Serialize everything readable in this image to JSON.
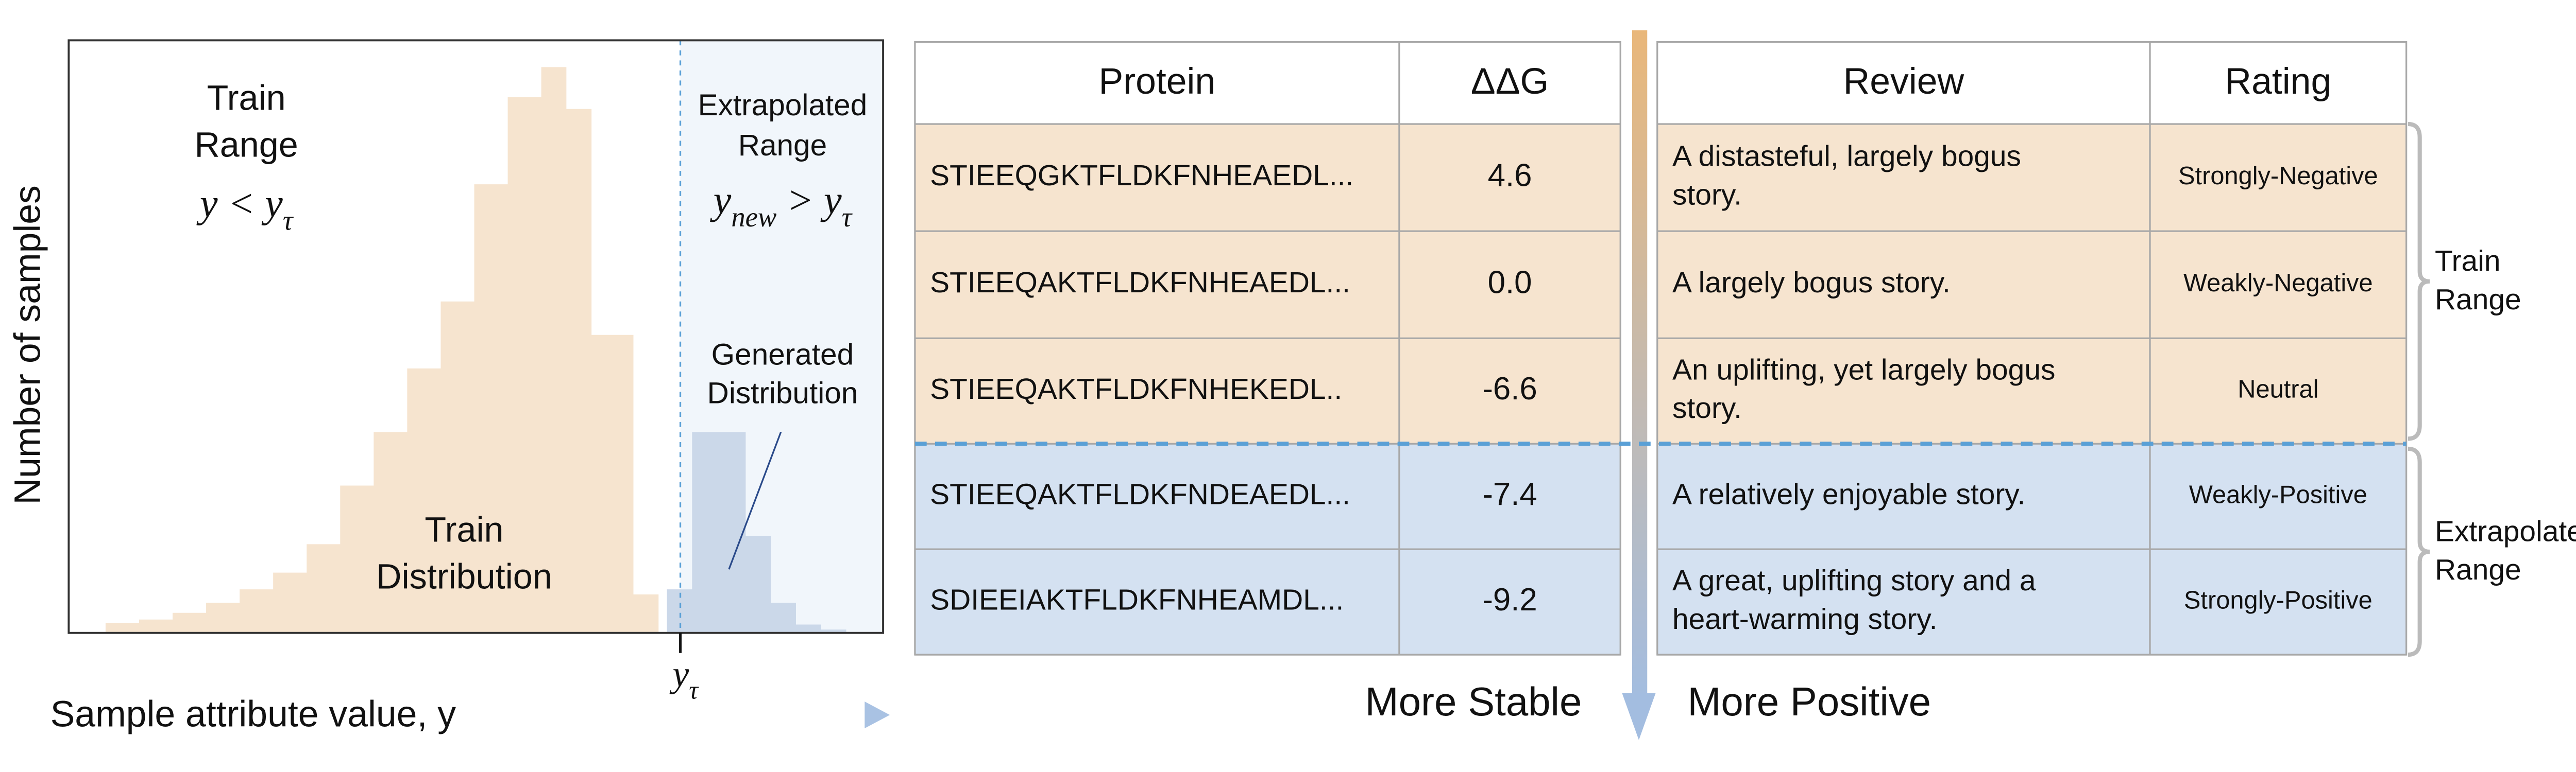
{
  "histogram": {
    "y_axis_label": "Number of samples",
    "x_axis_label": "Sample attribute value, y",
    "train_range": {
      "lines": [
        "Train",
        "Range"
      ],
      "math": [
        {
          "text": "y < y"
        },
        {
          "text": "τ",
          "sub": true
        }
      ]
    },
    "extrapolated_range": {
      "lines": [
        "Extrapolated",
        "Range"
      ],
      "math": [
        {
          "text": "y"
        },
        {
          "text": "new",
          "sub": true
        },
        {
          "text": " > y"
        },
        {
          "text": "τ",
          "sub": true
        }
      ]
    },
    "generated_label": [
      "Generated",
      "Distribution"
    ],
    "train_label": [
      "Train",
      "Distribution"
    ],
    "threshold_tick": [
      {
        "text": "y"
      },
      {
        "text": "τ",
        "sub": true
      }
    ]
  },
  "tables": [
    {
      "columns": [
        "Protein",
        "ΔΔG"
      ],
      "rows": [
        [
          "STIEEQGKTFLDKFNHEAEDL...",
          "4.6"
        ],
        [
          "STIEEQAKTFLDKFNHEAEDL...",
          "0.0"
        ],
        [
          "STIEEQAKTFLDKFNHEKEDL..",
          "-6.6"
        ],
        [
          "STIEEQAKTFLDKFNDEAEDL...",
          "-7.4"
        ],
        [
          "SDIEEIAKTFLDKFNHEAMDL...",
          "-9.2"
        ]
      ],
      "direction": "More Stable"
    },
    {
      "columns": [
        "Review",
        "Rating"
      ],
      "rows": [
        [
          [
            "A distasteful, largely bogus",
            "story."
          ],
          "Strongly-Negative"
        ],
        [
          [
            "A largely bogus story."
          ],
          "Weakly-Negative"
        ],
        [
          [
            "An uplifting, yet largely bogus",
            "story."
          ],
          "Neutral"
        ],
        [
          [
            "A relatively enjoyable story."
          ],
          "Weakly-Positive"
        ],
        [
          [
            "A great, uplifting story and a",
            "heart-warming story."
          ],
          "Strongly-Positive"
        ]
      ],
      "direction": "More Positive"
    }
  ],
  "brackets": [
    [
      "Train",
      "Range"
    ],
    [
      "Extrapolated",
      "Range"
    ]
  ]
}
